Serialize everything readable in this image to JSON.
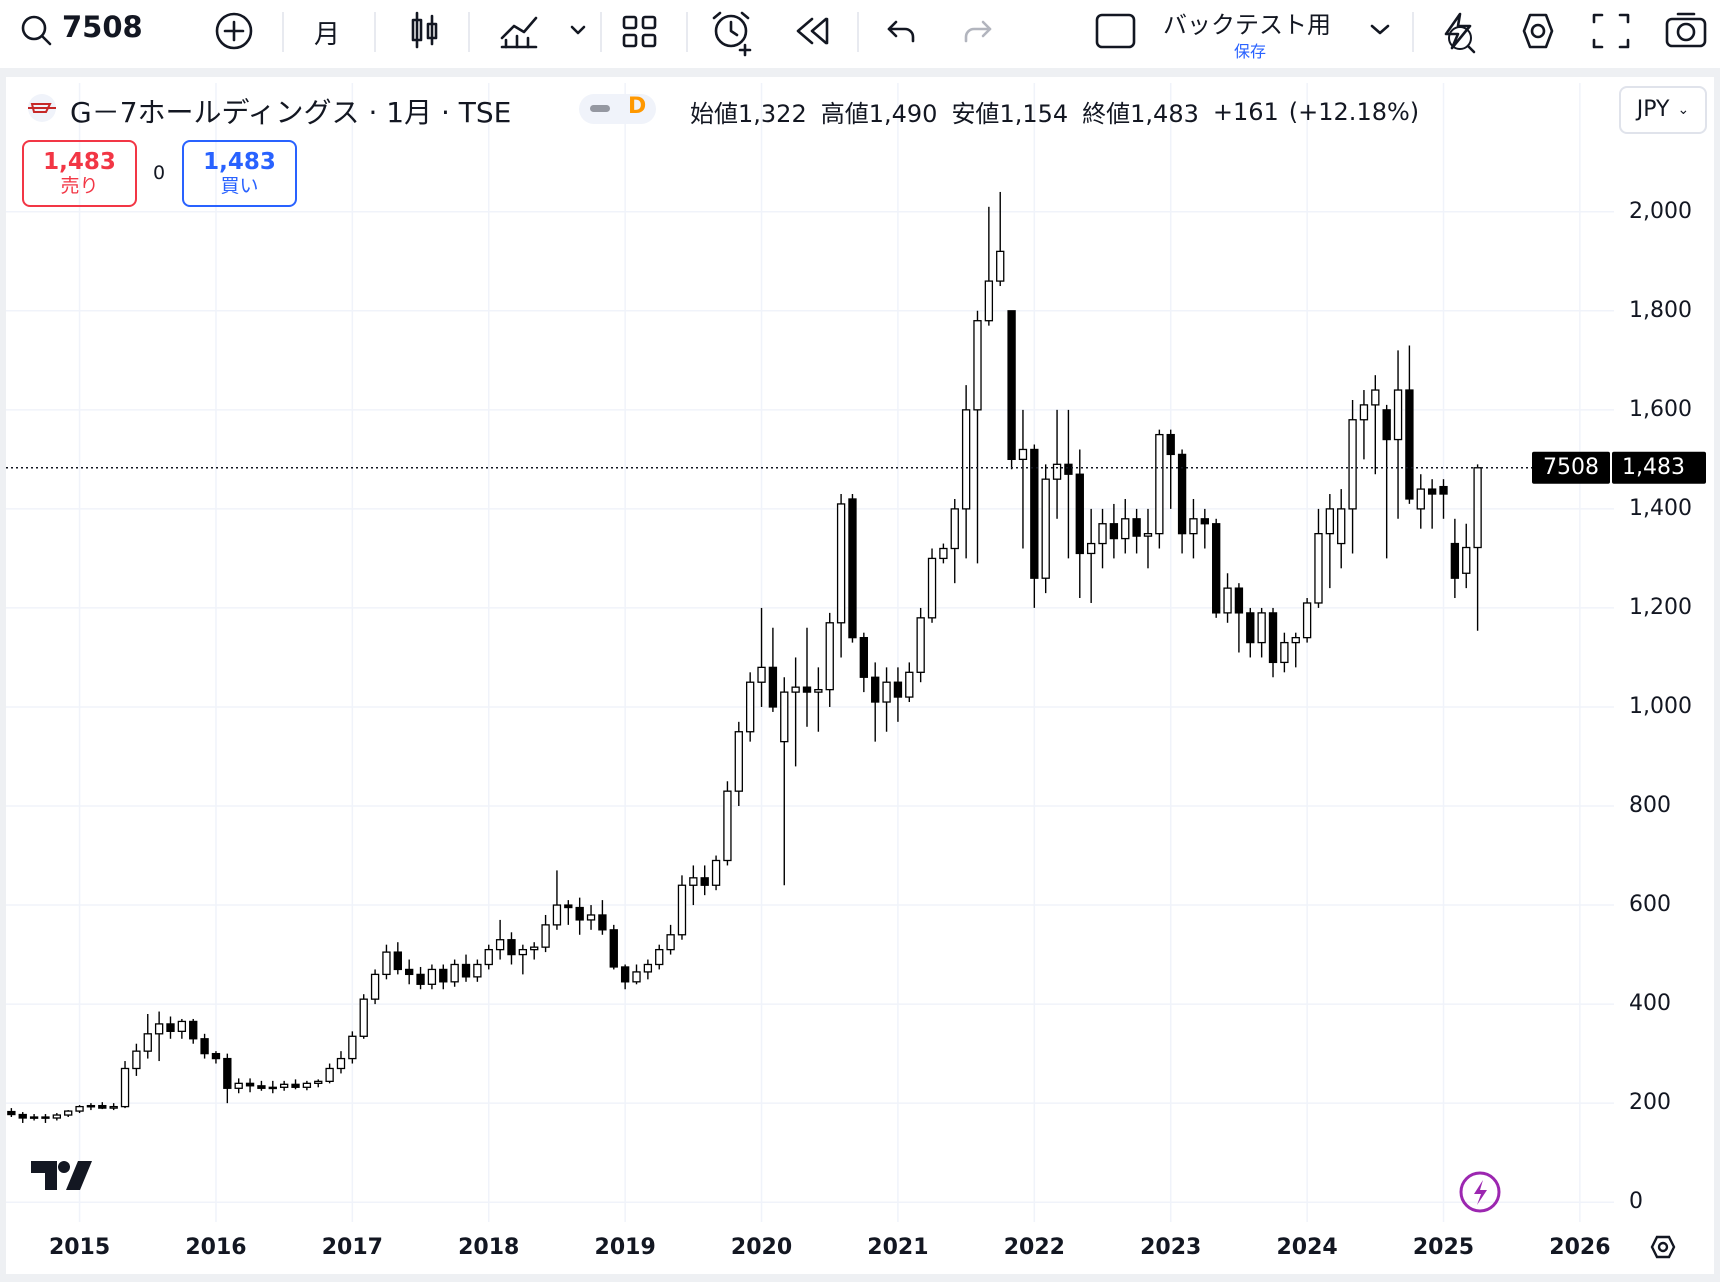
{
  "toolbar": {
    "symbol": "7508",
    "interval": "月",
    "backtest": "バックテスト用",
    "save": "保存"
  },
  "legend": {
    "title": "G－7ホールディングス · 1月 · TSE",
    "badge": "D",
    "ohlc": [
      {
        "label": "始値",
        "value": "1,322"
      },
      {
        "label": "高値",
        "value": "1,490"
      },
      {
        "label": "安値",
        "value": "1,154"
      },
      {
        "label": "終値",
        "value": "1,483"
      }
    ],
    "change": "+161",
    "change_pct": "(+12.18%)",
    "sell_price": "1,483",
    "sell": "売り",
    "spread": "0",
    "buy_price": "1,483",
    "buy": "買い",
    "currency": "JPY"
  },
  "chart_data": {
    "type": "candlestick",
    "x": [
      "2014-07",
      "2014-08",
      "2014-09",
      "2014-10",
      "2014-11",
      "2014-12",
      "2015-01",
      "2015-02",
      "2015-03",
      "2015-04",
      "2015-05",
      "2015-06",
      "2015-07",
      "2015-08",
      "2015-09",
      "2015-10",
      "2015-11",
      "2015-12",
      "2016-01",
      "2016-02",
      "2016-03",
      "2016-04",
      "2016-05",
      "2016-06",
      "2016-07",
      "2016-08",
      "2016-09",
      "2016-10",
      "2016-11",
      "2016-12",
      "2017-01",
      "2017-02",
      "2017-03",
      "2017-04",
      "2017-05",
      "2017-06",
      "2017-07",
      "2017-08",
      "2017-09",
      "2017-10",
      "2017-11",
      "2017-12",
      "2018-01",
      "2018-02",
      "2018-03",
      "2018-04",
      "2018-05",
      "2018-06",
      "2018-07",
      "2018-08",
      "2018-09",
      "2018-10",
      "2018-11",
      "2018-12",
      "2019-01",
      "2019-02",
      "2019-03",
      "2019-04",
      "2019-05",
      "2019-06",
      "2019-07",
      "2019-08",
      "2019-09",
      "2019-10",
      "2019-11",
      "2019-12",
      "2020-01",
      "2020-02",
      "2020-03",
      "2020-04",
      "2020-05",
      "2020-06",
      "2020-07",
      "2020-08",
      "2020-09",
      "2020-10",
      "2020-11",
      "2020-12",
      "2021-01",
      "2021-02",
      "2021-03",
      "2021-04",
      "2021-05",
      "2021-06",
      "2021-07",
      "2021-08",
      "2021-09",
      "2021-10",
      "2021-11",
      "2021-12",
      "2022-01",
      "2022-02",
      "2022-03",
      "2022-04",
      "2022-05",
      "2022-06",
      "2022-07",
      "2022-08",
      "2022-09",
      "2022-10",
      "2022-11",
      "2022-12",
      "2023-01",
      "2023-02",
      "2023-03",
      "2023-04",
      "2023-05",
      "2023-06",
      "2023-07",
      "2023-08",
      "2023-09",
      "2023-10",
      "2023-11",
      "2023-12",
      "2024-01",
      "2024-02",
      "2024-03",
      "2024-04",
      "2024-05",
      "2024-06",
      "2024-07",
      "2024-08",
      "2024-09",
      "2024-10",
      "2024-11",
      "2024-12",
      "2025-01",
      "2025-02",
      "2025-03",
      "2025-04"
    ],
    "open": [
      183,
      177,
      170,
      172,
      170,
      176,
      184,
      193,
      195,
      190,
      193,
      270,
      305,
      340,
      360,
      345,
      365,
      330,
      300,
      290,
      230,
      240,
      235,
      230,
      232,
      238,
      232,
      240,
      244,
      270,
      290,
      335,
      410,
      460,
      505,
      470,
      460,
      440,
      470,
      445,
      480,
      455,
      480,
      510,
      530,
      500,
      510,
      515,
      560,
      600,
      595,
      570,
      580,
      550,
      475,
      445,
      465,
      480,
      510,
      540,
      640,
      655,
      640,
      690,
      830,
      950,
      1050,
      1080,
      930,
      1030,
      1040,
      1030,
      1035,
      1170,
      1420,
      1140,
      1060,
      1010,
      1050,
      1020,
      1070,
      1180,
      1300,
      1320,
      1400,
      1600,
      1780,
      1860,
      1800,
      1500,
      1520,
      1260,
      1460,
      1490,
      1470,
      1310,
      1330,
      1370,
      1340,
      1380,
      1345,
      1350,
      1550,
      1510,
      1350,
      1380,
      1370,
      1190,
      1240,
      1190,
      1130,
      1190,
      1090,
      1130,
      1140,
      1210,
      1350,
      1330,
      1400,
      1580,
      1610,
      1600,
      1540,
      1640,
      1400,
      1440,
      1445,
      1330,
      1270,
      1322
    ],
    "high": [
      190,
      182,
      178,
      178,
      180,
      186,
      196,
      200,
      202,
      200,
      285,
      320,
      380,
      385,
      375,
      370,
      370,
      340,
      305,
      300,
      250,
      250,
      245,
      245,
      245,
      248,
      245,
      248,
      280,
      305,
      345,
      420,
      470,
      520,
      525,
      490,
      475,
      480,
      480,
      490,
      500,
      490,
      520,
      570,
      545,
      520,
      525,
      580,
      670,
      610,
      615,
      600,
      610,
      560,
      480,
      480,
      490,
      520,
      560,
      660,
      680,
      680,
      700,
      850,
      970,
      1070,
      1200,
      1160,
      1060,
      1100,
      1160,
      1080,
      1190,
      1430,
      1430,
      1150,
      1090,
      1080,
      1080,
      1090,
      1200,
      1320,
      1330,
      1420,
      1650,
      1800,
      2010,
      2040,
      1800,
      1600,
      1530,
      1490,
      1600,
      1600,
      1520,
      1400,
      1400,
      1410,
      1420,
      1400,
      1400,
      1560,
      1560,
      1520,
      1420,
      1400,
      1380,
      1270,
      1250,
      1200,
      1200,
      1200,
      1150,
      1150,
      1220,
      1400,
      1430,
      1440,
      1620,
      1640,
      1670,
      1610,
      1720,
      1730,
      1470,
      1460,
      1460,
      1380,
      1370,
      1490
    ],
    "low": [
      172,
      160,
      165,
      160,
      165,
      172,
      180,
      186,
      188,
      186,
      190,
      255,
      290,
      285,
      330,
      330,
      320,
      290,
      280,
      200,
      220,
      222,
      225,
      220,
      225,
      228,
      226,
      232,
      240,
      260,
      280,
      330,
      400,
      450,
      460,
      440,
      430,
      430,
      430,
      435,
      445,
      445,
      470,
      490,
      480,
      460,
      490,
      505,
      550,
      560,
      540,
      550,
      540,
      470,
      430,
      440,
      450,
      470,
      500,
      530,
      600,
      620,
      630,
      680,
      800,
      930,
      1000,
      990,
      640,
      880,
      960,
      950,
      1000,
      1100,
      1130,
      1030,
      930,
      950,
      970,
      1010,
      1050,
      1170,
      1290,
      1250,
      1300,
      1290,
      1770,
      1850,
      1480,
      1320,
      1200,
      1230,
      1380,
      1300,
      1220,
      1210,
      1280,
      1300,
      1310,
      1310,
      1280,
      1320,
      1400,
      1310,
      1300,
      1320,
      1180,
      1170,
      1110,
      1100,
      1100,
      1060,
      1070,
      1080,
      1130,
      1200,
      1240,
      1280,
      1310,
      1500,
      1470,
      1300,
      1380,
      1410,
      1360,
      1360,
      1380,
      1220,
      1240,
      1154
    ],
    "close": [
      177,
      170,
      172,
      170,
      176,
      184,
      193,
      195,
      190,
      193,
      270,
      305,
      340,
      360,
      345,
      365,
      330,
      300,
      290,
      230,
      240,
      235,
      230,
      232,
      238,
      232,
      240,
      244,
      270,
      290,
      335,
      410,
      460,
      505,
      470,
      460,
      440,
      470,
      445,
      480,
      455,
      480,
      510,
      530,
      500,
      510,
      515,
      560,
      600,
      595,
      570,
      580,
      550,
      475,
      445,
      465,
      480,
      510,
      540,
      640,
      655,
      640,
      690,
      830,
      950,
      1050,
      1080,
      1000,
      1030,
      1040,
      1030,
      1035,
      1170,
      1410,
      1140,
      1060,
      1010,
      1050,
      1020,
      1070,
      1180,
      1300,
      1320,
      1400,
      1600,
      1780,
      1860,
      1920,
      1500,
      1520,
      1260,
      1460,
      1490,
      1470,
      1310,
      1330,
      1370,
      1340,
      1380,
      1345,
      1350,
      1550,
      1510,
      1350,
      1380,
      1370,
      1190,
      1240,
      1190,
      1130,
      1190,
      1090,
      1130,
      1140,
      1210,
      1350,
      1400,
      1400,
      1580,
      1610,
      1640,
      1540,
      1640,
      1420,
      1440,
      1430,
      1430,
      1260,
      1322,
      1483
    ],
    "up_color": "#ffffff",
    "down_color": "#000000",
    "wick_color": "#000000",
    "xlim": [
      "2014-06",
      "2026-04"
    ],
    "xticks": [
      "2015",
      "2016",
      "2017",
      "2018",
      "2019",
      "2020",
      "2021",
      "2022",
      "2023",
      "2024",
      "2025",
      "2026"
    ],
    "ylim": [
      -40,
      2260
    ],
    "yticks": [
      0,
      200,
      400,
      600,
      800,
      {
        "value": 1000,
        "label": "1,000"
      },
      {
        "value": 1200,
        "label": "1,200"
      },
      {
        "value": 1400,
        "label": "1,400"
      },
      {
        "value": 1600,
        "label": "1,600"
      },
      {
        "value": 1800,
        "label": "1,800"
      },
      {
        "value": 2000,
        "label": "2,000"
      }
    ],
    "grid": true,
    "last_price": {
      "value": 1483,
      "label": "1,483"
    },
    "last_price_tag": "7508"
  }
}
